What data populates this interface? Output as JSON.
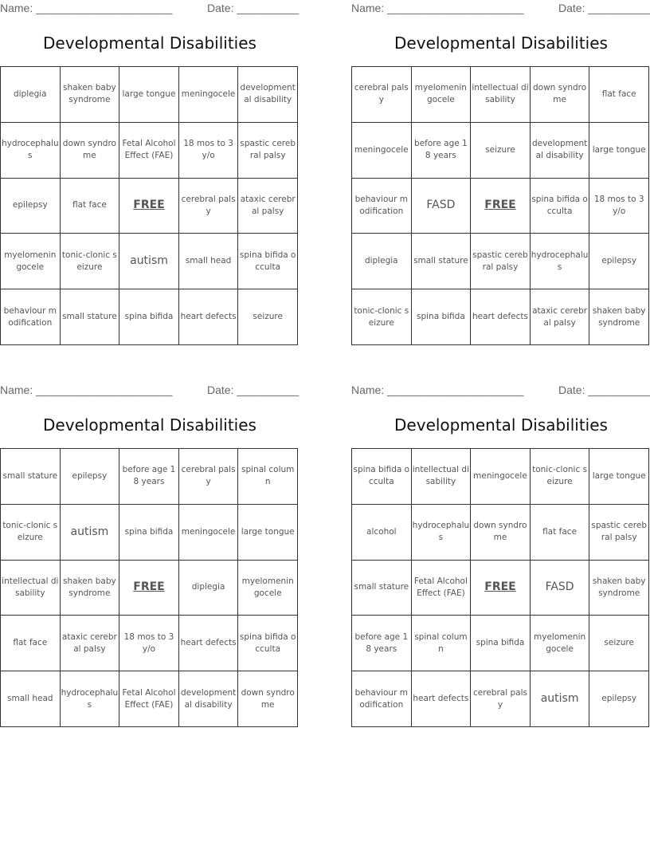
{
  "cards": [
    {
      "name_label": "Name: ______________________",
      "date_label": "Date: __________",
      "title": "Developmental Disabilities",
      "cells": [
        "diplegia",
        "shaken baby syndrome",
        "large tongue",
        "meningocele",
        "developmental disability",
        "hydrocephalus",
        "down syndrome",
        "Fetal Alcohol Effect (FAE)",
        "18 mos to 3 y/o",
        "spastic cerebral palsy",
        "epilepsy",
        "flat face",
        "FREE",
        "cerebral palsy",
        "ataxic cerebral palsy",
        "myelomeningocele",
        "tonic-clonic seizure",
        "autism",
        "small head",
        "spina bifida occulta",
        "behaviour modification",
        "small stature",
        "spina bifida",
        "heart defects",
        "seizure"
      ]
    },
    {
      "name_label": "Name: ______________________",
      "date_label": "Date: __________",
      "title": "Developmental Disabilities",
      "cells": [
        "cerebral palsy",
        "myelomeningocele",
        "intellectual disability",
        "down syndrome",
        "flat face",
        "meningocele",
        "before age 18 years",
        "seizure",
        "developmental disability",
        "large tongue",
        "behaviour modification",
        "FASD",
        "FREE",
        "spina bifida occulta",
        "18 mos to 3 y/o",
        "diplegia",
        "small stature",
        "spastic cerebral palsy",
        "hydrocephalus",
        "epilepsy",
        "tonic-clonic seizure",
        "spina bifida",
        "heart defects",
        "ataxic cerebral palsy",
        "shaken baby syndrome"
      ]
    },
    {
      "name_label": "Name: ______________________",
      "date_label": "Date: __________",
      "title": "Developmental Disabilities",
      "cells": [
        "small stature",
        "epilepsy",
        "before age 18 years",
        "cerebral palsy",
        "spinal column",
        "tonic-clonic seizure",
        "autism",
        "spina bifida",
        "meningocele",
        "large tongue",
        "intellectual disability",
        "shaken baby syndrome",
        "FREE",
        "diplegia",
        "myelomeningocele",
        "flat face",
        "ataxic cerebral palsy",
        "18 mos to 3 y/o",
        "heart defects",
        "spina bifida occulta",
        "small head",
        "hydrocephalus",
        "Fetal Alcohol Effect (FAE)",
        "developmental disability",
        "down syndrome"
      ]
    },
    {
      "name_label": "Name: ______________________",
      "date_label": "Date: __________",
      "title": "Developmental Disabilities",
      "cells": [
        "spina bifida occulta",
        "intellectual disability",
        "meningocele",
        "tonic-clonic seizure",
        "large tongue",
        "alcohol",
        "hydrocephalus",
        "down syndrome",
        "flat face",
        "spastic cerebral palsy",
        "small stature",
        "Fetal Alcohol Effect (FAE)",
        "FREE",
        "FASD",
        "shaken baby syndrome",
        "before age 18 years",
        "spinal column",
        "spina bifida",
        "myelomeningocele",
        "seizure",
        "behaviour modification",
        "heart defects",
        "cerebral palsy",
        "autism",
        "epilepsy"
      ]
    }
  ]
}
